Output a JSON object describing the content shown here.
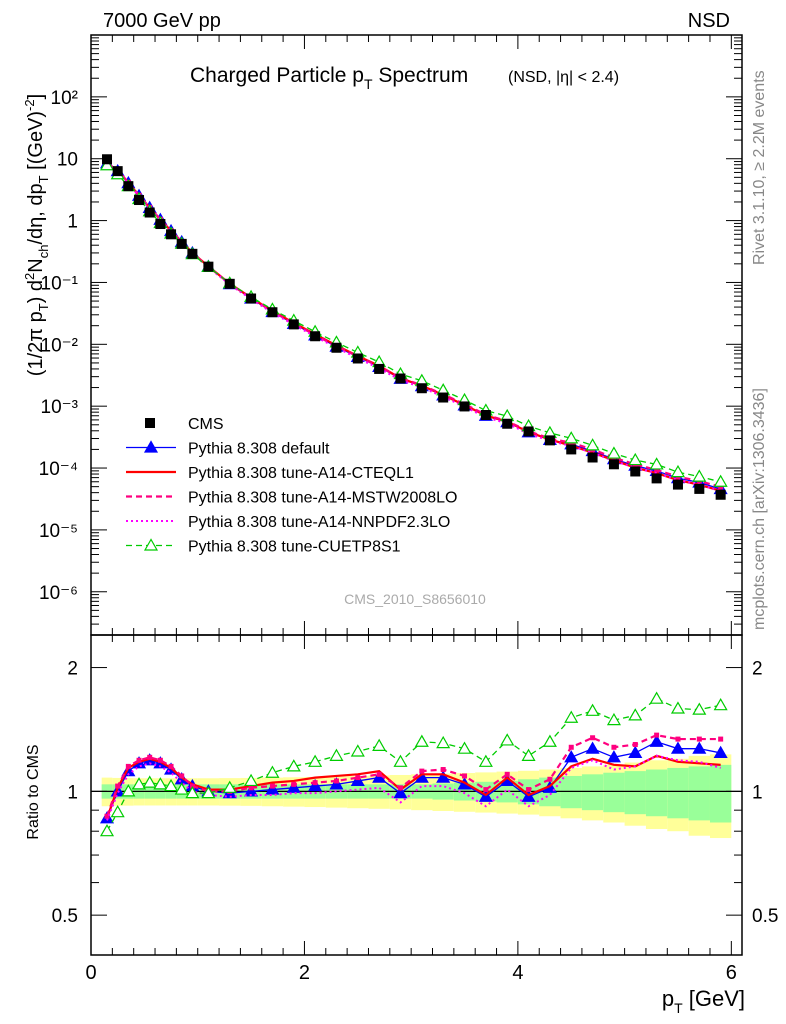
{
  "header": {
    "left": "7000 GeV pp",
    "right": "NSD"
  },
  "title": {
    "main": "Charged Particle p",
    "main_sub": "T",
    "main_tail": " Spectrum",
    "suffix": "(NSD, |η| < 2.4)"
  },
  "side_text": {
    "rivet": "Rivet 3.1.10, ≥ 2.2M events",
    "mcplots": "mcplots.cern.ch [arXiv:1306.3436]"
  },
  "analysis_id": "CMS_2010_S8656010",
  "y_label_top": "(1/2π p_T) d²N_ch/dη, dp_T [(GeV)⁻²]",
  "y_label_ratio": "Ratio to CMS",
  "x_label": "p_T [GeV]",
  "colors": {
    "cms": "#000000",
    "default": "#0000ff",
    "cteql1": "#ff0000",
    "mstw": "#ff007f",
    "nnpdf": "#ff00ff",
    "cuetp8s1": "#00cc00",
    "band_outer": "#ffff99",
    "band_inner": "#99ff99"
  },
  "chart_data": {
    "type": "line",
    "x_label": "p_T [GeV]",
    "xlim": [
      0,
      6.1
    ],
    "x_ticks": [
      0,
      2,
      4,
      6
    ],
    "top_panel": {
      "y_scale": "log",
      "ylim": [
        2e-07,
        1000
      ],
      "y_tick_labels": [
        "10⁻⁶",
        "10⁻⁵",
        "10⁻⁴",
        "10⁻³",
        "10⁻²",
        "10⁻¹",
        "1",
        "10",
        "10²"
      ],
      "legend_position": "bottom-left",
      "x": [
        0.15,
        0.25,
        0.35,
        0.45,
        0.55,
        0.65,
        0.75,
        0.85,
        0.95,
        1.1,
        1.3,
        1.5,
        1.7,
        1.9,
        2.1,
        2.3,
        2.5,
        2.7,
        2.9,
        3.1,
        3.3,
        3.5,
        3.7,
        3.9,
        4.1,
        4.3,
        4.5,
        4.7,
        4.9,
        5.1,
        5.3,
        5.5,
        5.7,
        5.9
      ],
      "cms": [
        9.8,
        6.3,
        3.6,
        2.15,
        1.35,
        0.88,
        0.6,
        0.42,
        0.29,
        0.18,
        0.095,
        0.055,
        0.033,
        0.021,
        0.0135,
        0.0088,
        0.0059,
        0.004,
        0.0028,
        0.00195,
        0.00138,
        0.00099,
        0.00072,
        0.00052,
        0.00039,
        0.00028,
        0.0002,
        0.000148,
        0.000115,
        8.8e-05,
        6.8e-05,
        5.4e-05,
        4.6e-05,
        3.7e-05
      ],
      "series": [
        {
          "name": "CMS",
          "key": "cms"
        },
        {
          "name": "Pythia 8.308 default",
          "key": "default"
        },
        {
          "name": "Pythia 8.308 tune-A14-CTEQL1",
          "key": "cteql1"
        },
        {
          "name": "Pythia 8.308 tune-A14-MSTW2008LO",
          "key": "mstw"
        },
        {
          "name": "Pythia 8.308 tune-A14-NNPDF2.3LO",
          "key": "nnpdf"
        },
        {
          "name": "Pythia 8.308 tune-CUETP8S1",
          "key": "cuetp8s1"
        }
      ]
    },
    "ratio_panel": {
      "ylabel": "Ratio to CMS",
      "y_scale": "log",
      "ylim": [
        0.4,
        2.4
      ],
      "y_ticks": [
        0.5,
        1,
        2
      ],
      "y_tick_labels": [
        "0.5",
        "1",
        "2"
      ],
      "series": [
        {
          "key": "default",
          "values": [
            0.86,
            1.0,
            1.12,
            1.17,
            1.19,
            1.17,
            1.13,
            1.07,
            1.03,
            1.0,
            0.99,
            1.0,
            1.01,
            1.02,
            1.03,
            1.04,
            1.06,
            1.08,
            0.99,
            1.08,
            1.08,
            1.04,
            0.97,
            1.06,
            0.97,
            1.02,
            1.21,
            1.27,
            1.21,
            1.24,
            1.32,
            1.27,
            1.27,
            1.24
          ]
        },
        {
          "key": "cteql1",
          "values": [
            0.86,
            1.02,
            1.14,
            1.18,
            1.2,
            1.18,
            1.14,
            1.08,
            1.04,
            1.01,
            1.01,
            1.03,
            1.05,
            1.06,
            1.08,
            1.09,
            1.1,
            1.12,
            1.01,
            1.1,
            1.1,
            1.05,
            0.98,
            1.08,
            0.98,
            1.03,
            1.15,
            1.2,
            1.16,
            1.15,
            1.22,
            1.18,
            1.17,
            1.16
          ]
        },
        {
          "key": "mstw",
          "values": [
            0.87,
            1.03,
            1.15,
            1.19,
            1.21,
            1.19,
            1.15,
            1.09,
            1.03,
            1.0,
            1.0,
            1.02,
            1.03,
            1.04,
            1.05,
            1.06,
            1.08,
            1.1,
            1.02,
            1.12,
            1.13,
            1.09,
            1.01,
            1.1,
            1.01,
            1.07,
            1.28,
            1.35,
            1.28,
            1.3,
            1.37,
            1.34,
            1.34,
            1.34
          ]
        },
        {
          "key": "nnpdf",
          "values": [
            0.85,
            0.99,
            1.1,
            1.15,
            1.17,
            1.15,
            1.11,
            1.05,
            1.0,
            0.98,
            0.97,
            0.98,
            0.98,
            0.99,
            0.99,
            1.0,
            1.01,
            1.02,
            0.94,
            1.03,
            1.03,
            0.99,
            0.92,
            1.01,
            0.92,
            0.98,
            1.14,
            1.19,
            1.13,
            1.15,
            1.22,
            1.19,
            1.18,
            1.14
          ]
        },
        {
          "key": "cuetp8s1",
          "values": [
            0.8,
            0.89,
            1.0,
            1.04,
            1.05,
            1.04,
            1.03,
            1.01,
            0.99,
            0.99,
            1.02,
            1.06,
            1.11,
            1.15,
            1.18,
            1.22,
            1.25,
            1.29,
            1.18,
            1.32,
            1.31,
            1.27,
            1.18,
            1.33,
            1.22,
            1.32,
            1.51,
            1.57,
            1.49,
            1.53,
            1.68,
            1.59,
            1.58,
            1.62
          ]
        }
      ],
      "band_edges": [
        0.1,
        0.2,
        0.3,
        0.4,
        0.5,
        0.6,
        0.7,
        0.8,
        0.9,
        1.0,
        1.2,
        1.4,
        1.6,
        1.8,
        2.0,
        2.2,
        2.4,
        2.6,
        2.8,
        3.0,
        3.2,
        3.4,
        3.6,
        3.8,
        4.0,
        4.2,
        4.4,
        4.6,
        4.8,
        5.0,
        5.2,
        5.4,
        5.6,
        5.8,
        6.0
      ],
      "band_outer": [
        0.08,
        0.078,
        0.077,
        0.076,
        0.076,
        0.076,
        0.076,
        0.076,
        0.076,
        0.076,
        0.077,
        0.078,
        0.08,
        0.082,
        0.084,
        0.087,
        0.09,
        0.093,
        0.096,
        0.1,
        0.104,
        0.108,
        0.112,
        0.117,
        0.122,
        0.13,
        0.14,
        0.15,
        0.16,
        0.175,
        0.19,
        0.2,
        0.22,
        0.23
      ],
      "band_inner": [
        0.04,
        0.04,
        0.04,
        0.04,
        0.04,
        0.04,
        0.04,
        0.04,
        0.04,
        0.04,
        0.04,
        0.04,
        0.04,
        0.04,
        0.04,
        0.04,
        0.04,
        0.04,
        0.04,
        0.04,
        0.045,
        0.05,
        0.055,
        0.06,
        0.07,
        0.08,
        0.09,
        0.1,
        0.11,
        0.12,
        0.13,
        0.14,
        0.15,
        0.16
      ]
    }
  }
}
